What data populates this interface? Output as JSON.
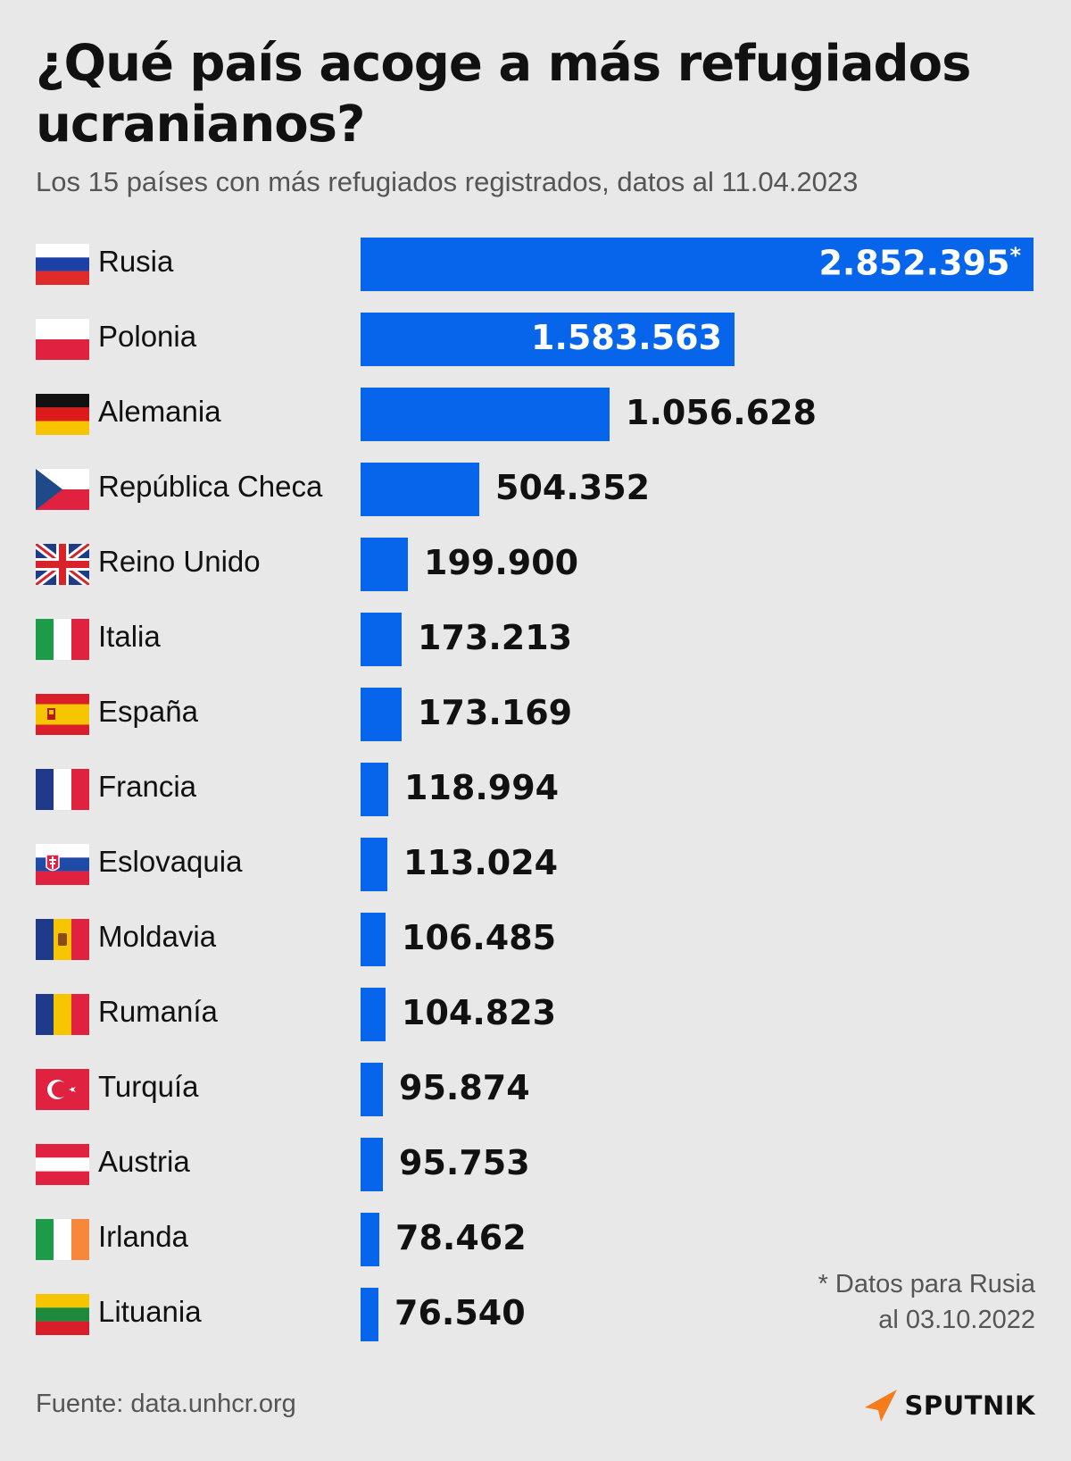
{
  "title": "¿Qué país acoge a más refugiados ucranianos?",
  "subtitle": "Los 15 países con más refugiados registrados, datos al 11.04.2023",
  "footnote": {
    "line1": "* Datos para Rusia",
    "line2": "al 03.10.2022"
  },
  "source": "Fuente: data.unhcr.org",
  "brand": "SPUTNIK",
  "colors": {
    "bar": "#0765ec",
    "background": "#e8e8e8",
    "brand_accent": "#f47c1c"
  },
  "chart_data": {
    "type": "bar",
    "orientation": "horizontal",
    "categories": [
      "Rusia",
      "Polonia",
      "Alemania",
      "República Checa",
      "Reino Unido",
      "Italia",
      "España",
      "Francia",
      "Eslovaquia",
      "Moldavia",
      "Rumanía",
      "Turquía",
      "Austria",
      "Irlanda",
      "Lituania"
    ],
    "values": [
      2852395,
      1583563,
      1056628,
      504352,
      199900,
      173213,
      173169,
      118994,
      113024,
      106485,
      104823,
      95874,
      95753,
      78462,
      76540
    ],
    "labels": [
      "2.852.395",
      "1.583.563",
      "1.056.628",
      "504.352",
      "199.900",
      "173.213",
      "173.169",
      "118.994",
      "113.024",
      "106.485",
      "104.823",
      "95.874",
      "95.753",
      "78.462",
      "76.540"
    ],
    "label_marks": [
      "*",
      "",
      "",
      "",
      "",
      "",
      "",
      "",
      "",
      "",
      "",
      "",
      "",
      "",
      ""
    ],
    "flags": [
      "russia-flag-icon",
      "poland-flag-icon",
      "germany-flag-icon",
      "czech-flag-icon",
      "uk-flag-icon",
      "italy-flag-icon",
      "spain-flag-icon",
      "france-flag-icon",
      "slovakia-flag-icon",
      "moldova-flag-icon",
      "romania-flag-icon",
      "turkey-flag-icon",
      "austria-flag-icon",
      "ireland-flag-icon",
      "lithuania-flag-icon"
    ],
    "title": "¿Qué país acoge a más refugiados ucranianos?",
    "xlabel": "",
    "ylabel": "",
    "xlim": [
      0,
      2852395
    ],
    "grid": false,
    "legend": "none"
  }
}
